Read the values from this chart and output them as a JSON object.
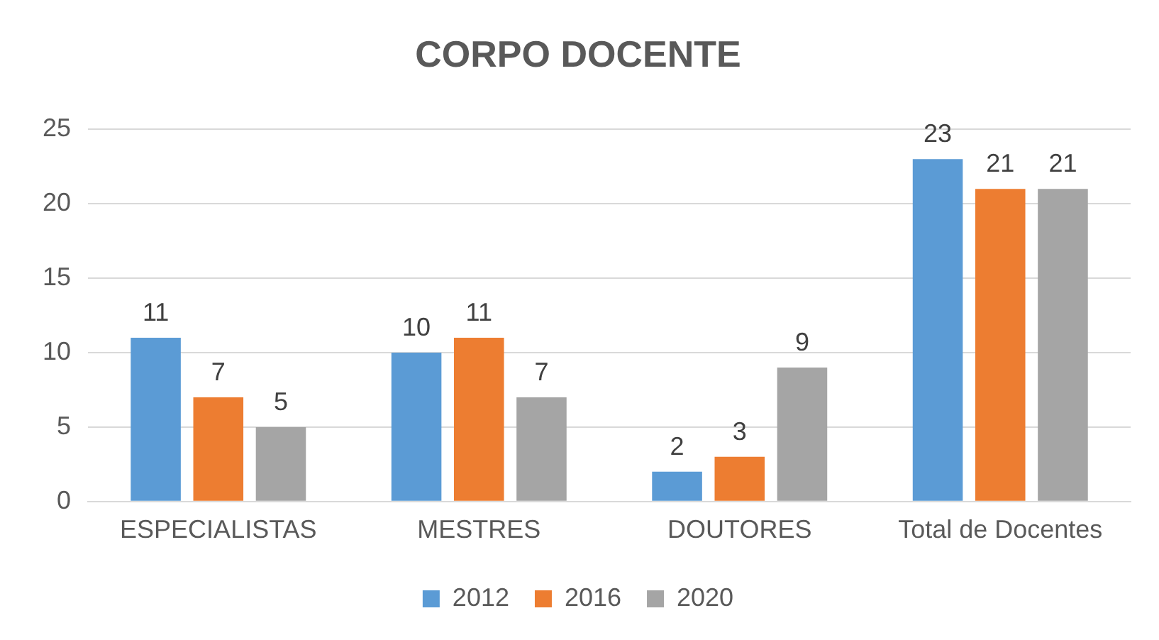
{
  "chart_data": {
    "type": "bar",
    "title": "CORPO DOCENTE",
    "categories": [
      "ESPECIALISTAS",
      "MESTRES",
      "DOUTORES",
      "Total de Docentes"
    ],
    "series": [
      {
        "name": "2012",
        "color": "#5b9bd5",
        "values": [
          11,
          10,
          2,
          23
        ]
      },
      {
        "name": "2016",
        "color": "#ed7d31",
        "values": [
          7,
          11,
          3,
          21
        ]
      },
      {
        "name": "2020",
        "color": "#a5a5a5",
        "values": [
          5,
          7,
          9,
          21
        ]
      }
    ],
    "ylim": [
      0,
      25
    ],
    "yticks": [
      0,
      5,
      10,
      15,
      20,
      25
    ],
    "grid": "y",
    "legend": "bottom",
    "data_labels": true
  }
}
